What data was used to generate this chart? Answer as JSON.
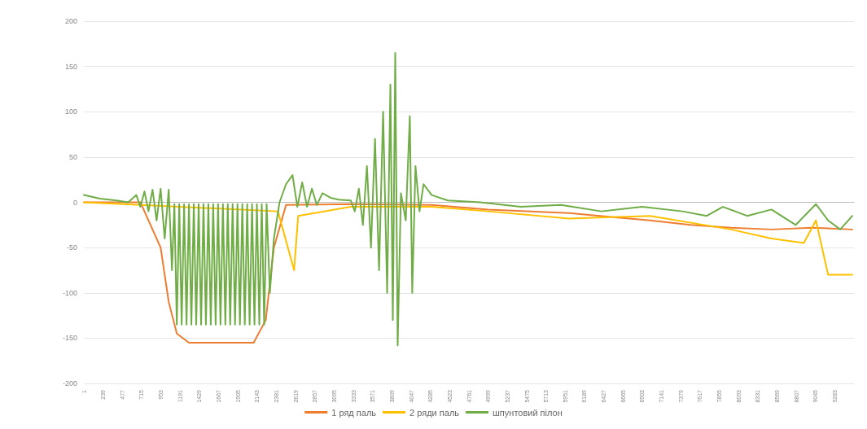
{
  "chart_data": {
    "type": "line",
    "xlim": [
      1,
      9520
    ],
    "xticks": [
      1,
      239,
      477,
      715,
      953,
      1191,
      1429,
      1667,
      1905,
      2143,
      2381,
      2619,
      2857,
      3095,
      3333,
      3571,
      3809,
      4047,
      4285,
      4523,
      4761,
      4999,
      5237,
      5475,
      5713,
      5951,
      6189,
      6427,
      6665,
      6903,
      7141,
      7379,
      7617,
      7855,
      8093,
      8331,
      8569,
      8807,
      9045,
      9283
    ],
    "ylim": [
      -200,
      200
    ],
    "yticks": [
      -200,
      -150,
      -100,
      -50,
      0,
      50,
      100,
      150,
      200
    ],
    "grid": "y",
    "legend": "bottom",
    "marker": "none",
    "line_style": "solid",
    "series": [
      {
        "name": "1 ряд паль",
        "color": "#ed7d31",
        "x": [
          1,
          700,
          950,
          1050,
          1150,
          1300,
          2100,
          2250,
          2350,
          2500,
          3300,
          4300,
          5000,
          6000,
          7000,
          7500,
          8000,
          8500,
          9000,
          9500
        ],
        "values": [
          0,
          0,
          -50,
          -110,
          -145,
          -155,
          -155,
          -130,
          -50,
          -3,
          -2,
          -3,
          -8,
          -12,
          -20,
          -25,
          -28,
          -30,
          -28,
          -30
        ]
      },
      {
        "name": "2 ряди паль",
        "color": "#ffc000",
        "x": [
          1,
          2400,
          2600,
          2650,
          3300,
          4300,
          5000,
          6000,
          7000,
          8000,
          8500,
          8900,
          9050,
          9200,
          9500
        ],
        "values": [
          0,
          -10,
          -75,
          -15,
          -5,
          -5,
          -10,
          -18,
          -15,
          -30,
          -40,
          -45,
          -20,
          -80,
          -80
        ]
      },
      {
        "name": "шпунтовий пілон",
        "color": "#70ad47",
        "x": [
          1,
          200,
          400,
          550,
          650,
          700,
          750,
          800,
          850,
          900,
          950,
          1000,
          1050,
          1090,
          1120,
          1150,
          1180,
          1210,
          1240,
          1270,
          1300,
          1330,
          1360,
          1390,
          1420,
          1450,
          1480,
          1510,
          1540,
          1570,
          1600,
          1630,
          1660,
          1690,
          1720,
          1750,
          1780,
          1810,
          1840,
          1870,
          1900,
          1930,
          1960,
          1990,
          2020,
          2050,
          2080,
          2110,
          2140,
          2170,
          2200,
          2230,
          2260,
          2300,
          2350,
          2420,
          2500,
          2580,
          2640,
          2700,
          2760,
          2820,
          2880,
          2950,
          3050,
          3150,
          3300,
          3350,
          3400,
          3450,
          3500,
          3550,
          3600,
          3650,
          3700,
          3750,
          3790,
          3820,
          3850,
          3880,
          3920,
          3980,
          4030,
          4060,
          4100,
          4150,
          4200,
          4300,
          4500,
          4900,
          5400,
          5900,
          6400,
          6900,
          7400,
          7700,
          7900,
          8200,
          8500,
          8800,
          9050,
          9200,
          9350,
          9500
        ],
        "values": [
          8,
          4,
          2,
          0,
          8,
          -5,
          12,
          -10,
          14,
          -20,
          15,
          -40,
          14,
          -75,
          -2,
          -135,
          -2,
          -135,
          -2,
          -135,
          -2,
          -135,
          -2,
          -135,
          -2,
          -135,
          -2,
          -135,
          -2,
          -135,
          -2,
          -135,
          -2,
          -135,
          -2,
          -135,
          -2,
          -135,
          -2,
          -135,
          -2,
          -135,
          -2,
          -135,
          -2,
          -135,
          -2,
          -135,
          -2,
          -135,
          -2,
          -135,
          -2,
          -100,
          -40,
          0,
          20,
          30,
          -5,
          22,
          -5,
          15,
          -3,
          10,
          5,
          3,
          2,
          -10,
          15,
          -25,
          40,
          -50,
          70,
          -75,
          100,
          -100,
          130,
          -130,
          165,
          -158,
          10,
          -20,
          95,
          -100,
          40,
          -10,
          20,
          8,
          2,
          0,
          -5,
          -3,
          -10,
          -5,
          -10,
          -15,
          -5,
          -15,
          -8,
          -25,
          -2,
          -20,
          -30,
          -15
        ]
      }
    ]
  }
}
